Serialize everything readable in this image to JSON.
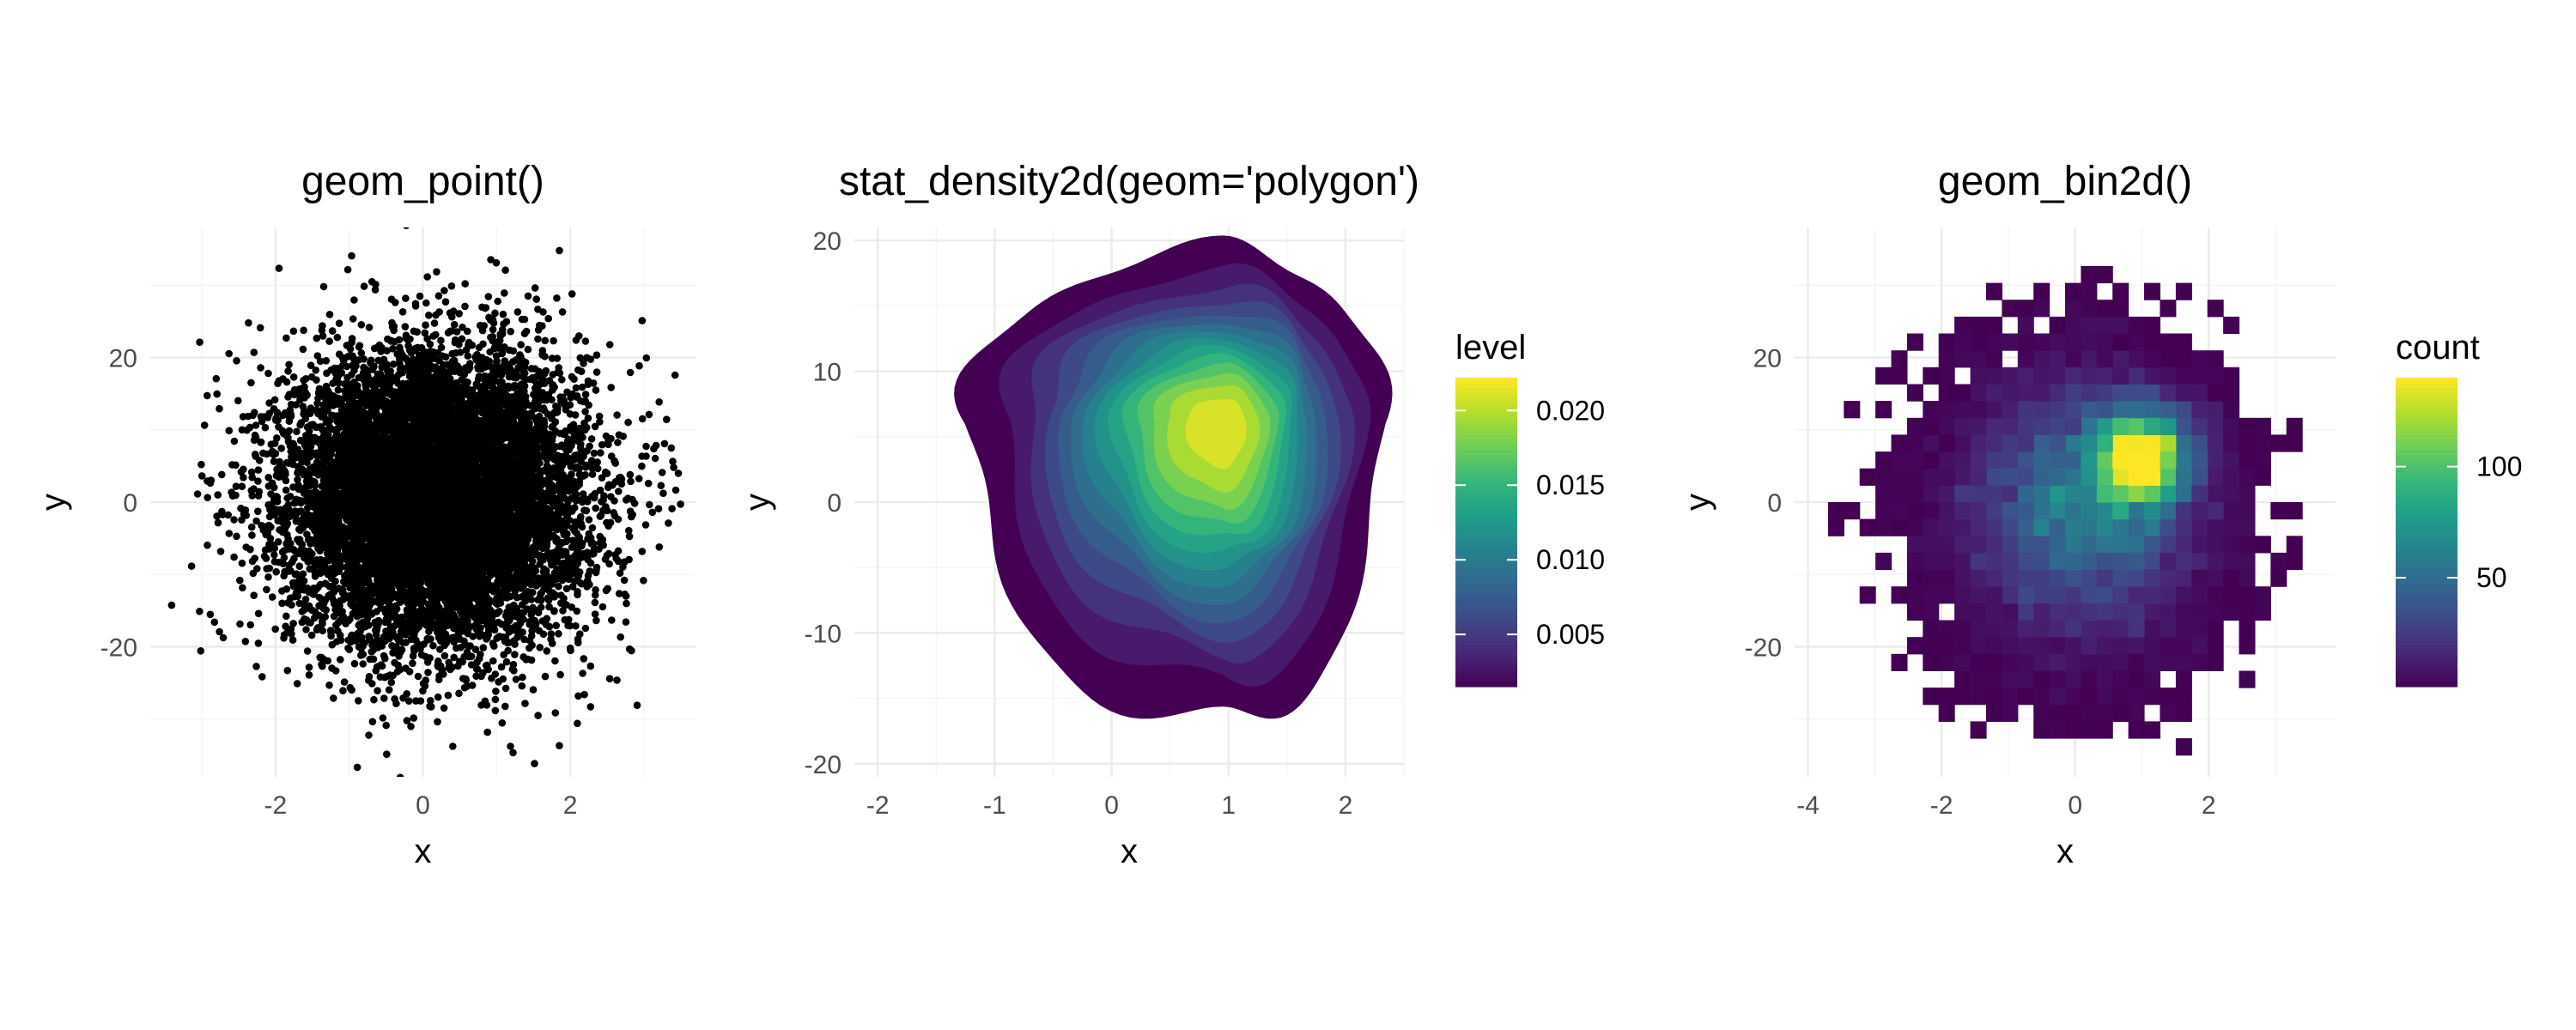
{
  "chart_data": [
    {
      "type": "scatter",
      "title": "geom_point()",
      "xlabel": "x",
      "ylabel": "y",
      "xlim": [
        -3.7,
        3.7
      ],
      "ylim": [
        -38,
        38
      ],
      "x_ticks": [
        -2,
        0,
        2
      ],
      "y_ticks": [
        -20,
        0,
        20
      ],
      "point_color": "#000000",
      "distribution": {
        "n": 10000,
        "x_mean": 0.2,
        "x_sd": 1.0,
        "y_mean": 0.5,
        "y_sd": 10.0
      }
    },
    {
      "type": "area",
      "title": "stat_density2d(geom='polygon')",
      "xlabel": "x",
      "ylabel": "y",
      "xlim": [
        -2.2,
        2.5
      ],
      "ylim": [
        -21,
        21
      ],
      "x_ticks": [
        -2,
        -1,
        0,
        1,
        2
      ],
      "y_ticks": [
        -20,
        -10,
        0,
        10,
        20
      ],
      "legend": {
        "title": "level",
        "position": "right",
        "range": [
          0.0015,
          0.0222
        ],
        "ticks": [
          0.005,
          0.01,
          0.015,
          0.02
        ],
        "tick_labels": [
          "0.005",
          "0.010",
          "0.015",
          "0.020"
        ]
      },
      "levels": [
        0.0015,
        0.003,
        0.0045,
        0.006,
        0.0075,
        0.009,
        0.0105,
        0.012,
        0.0135,
        0.015,
        0.0165,
        0.018,
        0.0195,
        0.021
      ]
    },
    {
      "type": "heatmap",
      "title": "geom_bin2d()",
      "xlabel": "x",
      "ylabel": "y",
      "xlim": [
        -4.2,
        3.9
      ],
      "ylim": [
        -38,
        38
      ],
      "x_ticks": [
        -4,
        -2,
        0,
        2
      ],
      "y_ticks": [
        -20,
        0,
        20
      ],
      "bins": 30,
      "legend": {
        "title": "count",
        "position": "right",
        "range": [
          1,
          140
        ],
        "ticks": [
          50,
          100
        ],
        "tick_labels": [
          "50",
          "100"
        ]
      }
    }
  ],
  "colors": {
    "viridis": [
      "#440154",
      "#482878",
      "#3e4a89",
      "#31688e",
      "#26828e",
      "#1f9e89",
      "#35b779",
      "#6ece58",
      "#b5de2b",
      "#fde725"
    ],
    "grid": "#ebebeb",
    "tick_text": "#4d4d4d"
  }
}
